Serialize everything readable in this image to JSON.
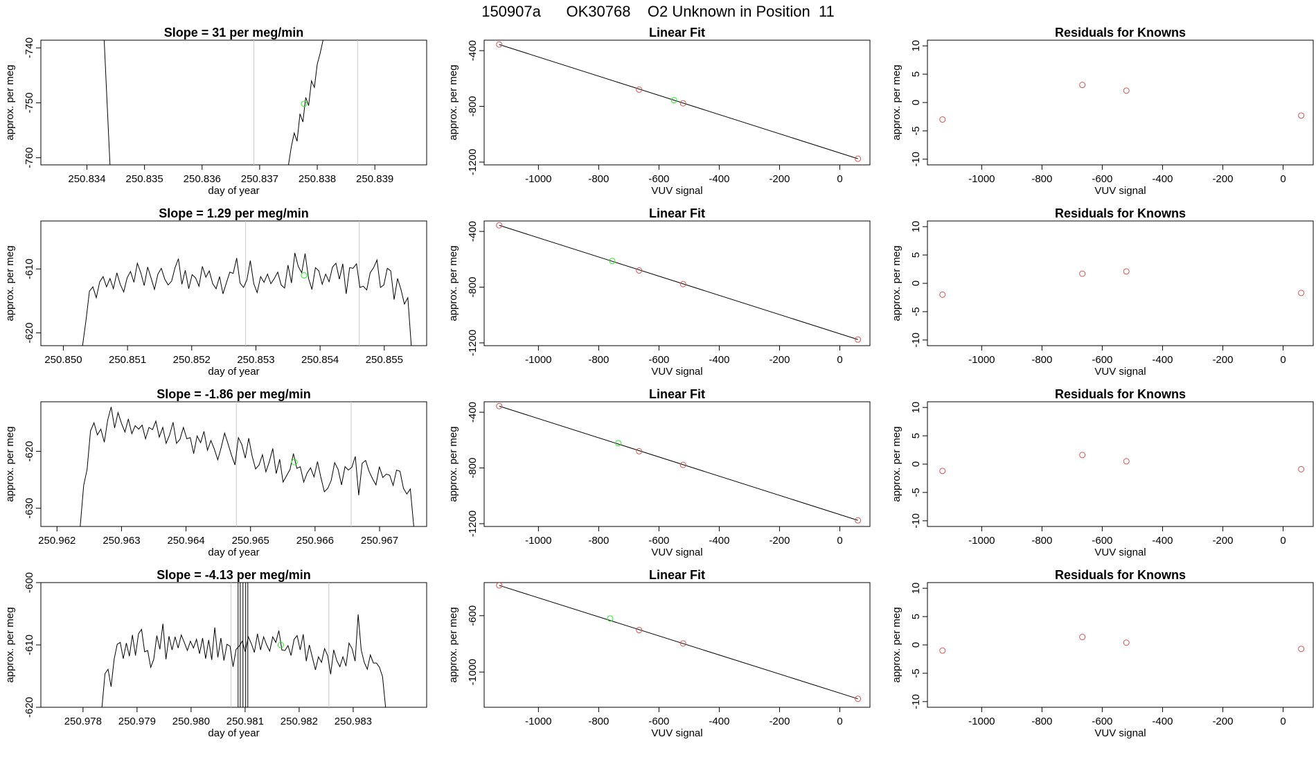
{
  "page": {
    "title": "150907a      OK30768    O2 Unknown in Position  11"
  },
  "chart_data": [
    {
      "type": "line",
      "panel": "timeseries",
      "title": "Slope =  31  per meg/min",
      "xlabel": "day of year",
      "ylabel": "approx. per meg",
      "xlim": [
        250.8332,
        250.8399
      ],
      "ylim": [
        -761.3,
        -738.6
      ],
      "xticks": [
        "250.834",
        "250.835",
        "250.836",
        "250.837",
        "250.838",
        "250.839"
      ],
      "yticks": [
        "-740",
        "-750",
        "-760"
      ],
      "vlines": [
        250.8369,
        250.8387
      ],
      "series": [
        {
          "name": "left-trace",
          "x": [
            250.8343,
            250.8344
          ],
          "y": [
            -738.6,
            -761.3
          ]
        },
        {
          "name": "right-trace",
          "x": [
            250.8375,
            250.83755,
            250.8376,
            250.83765,
            250.8377,
            250.83775,
            250.8378,
            250.83785,
            250.8379,
            250.83795,
            250.838,
            250.83805,
            250.8381
          ],
          "y": [
            -761.3,
            -758,
            -755.5,
            -757,
            -752,
            -753.5,
            -749,
            -750.5,
            -746,
            -747.2,
            -743,
            -741,
            -738.6
          ]
        }
      ],
      "marker": {
        "x": 250.83777,
        "y": -750.2
      }
    },
    {
      "type": "scatter",
      "panel": "fit",
      "title": "Linear Fit",
      "xlabel": "VUV signal",
      "ylabel": "approx. per meg",
      "xlim": [
        -1180,
        100
      ],
      "ylim": [
        -1220,
        -325
      ],
      "xticks": [
        "-1000",
        "-800",
        "-600",
        "-400",
        "-200",
        "0"
      ],
      "yticks": [
        "-400",
        "-800",
        "-1200"
      ],
      "fit_line": {
        "x": [
          -1130,
          60
        ],
        "y": [
          -356,
          -1176
        ]
      },
      "knowns": {
        "x": [
          -1130,
          -666,
          -520,
          60
        ],
        "y": [
          -356,
          -680,
          -778,
          -1176
        ]
      },
      "unknown": {
        "x": -550,
        "y": -756
      }
    },
    {
      "type": "scatter",
      "panel": "residuals",
      "title": "Residuals for Knowns",
      "xlabel": "VUV signal",
      "ylabel": "approx. per meg",
      "xlim": [
        -1180,
        100
      ],
      "ylim": [
        -11,
        11
      ],
      "xticks": [
        "-1000",
        "-800",
        "-600",
        "-400",
        "-200",
        "0"
      ],
      "yticks": [
        "10",
        "5",
        "0",
        "-5",
        "-10"
      ],
      "knowns": {
        "x": [
          -1130,
          -666,
          -520,
          60
        ],
        "y": [
          -3,
          3.1,
          2.1,
          -2.3
        ]
      }
    },
    {
      "type": "line",
      "panel": "timeseries",
      "title": "Slope =  1.29  per meg/min",
      "xlabel": "day of year",
      "ylabel": "approx. per meg",
      "xlim": [
        250.84965,
        250.85566
      ],
      "ylim": [
        -622,
        -602.5
      ],
      "xticks": [
        "250.850",
        "250.851",
        "250.852",
        "250.853",
        "250.854",
        "250.855"
      ],
      "yticks": [
        "-610",
        "-620"
      ],
      "vlines": [
        250.85284,
        250.85461
      ],
      "series": [
        {
          "name": "trace",
          "x_start": 250.8503,
          "x_end": 250.85542,
          "y": [
            -622,
            -618,
            -613.5,
            -612.8,
            -614.5,
            -612,
            -611.2,
            -612.8,
            -611.5,
            -613.1,
            -610.6,
            -612.4,
            -613.6,
            -611.4,
            -610.4,
            -612.1,
            -609.1,
            -610.6,
            -612.6,
            -609.7,
            -611.4,
            -613.2,
            -610.8,
            -609.9,
            -611.6,
            -612.5,
            -611.9,
            -609.8,
            -608.4,
            -612.4,
            -610.2,
            -613.1,
            -610.9,
            -611.4,
            -612.7,
            -609.6,
            -611.3,
            -610.3,
            -612.3,
            -613.1,
            -611.2,
            -613.9,
            -612.2,
            -610.5,
            -610.7,
            -608.3,
            -612.2,
            -612.9,
            -611.7,
            -608.7,
            -612.3,
            -613.7,
            -611.2,
            -612.1,
            -610.8,
            -612.3,
            -611.5,
            -610.5,
            -612.5,
            -613,
            -609.4,
            -612.2,
            -607.5,
            -609.6,
            -610.6,
            -607.6,
            -611.5,
            -613.2,
            -609.8,
            -610.3,
            -612.4,
            -610.8,
            -612,
            -609.7,
            -609.1,
            -611.6,
            -609.2,
            -613.9,
            -609.8,
            -609.9,
            -609.2,
            -612.9,
            -612.7,
            -613.3,
            -610.6,
            -609.8,
            -608.6,
            -612.9,
            -612.5,
            -609.9,
            -610.3,
            -614.8,
            -611.5,
            -613.2,
            -615.5,
            -614.5,
            -622
          ]
        }
      ],
      "marker": {
        "x": 250.85375,
        "y": -611
      }
    },
    {
      "type": "scatter",
      "panel": "fit",
      "title": "Linear Fit",
      "xlabel": "VUV signal",
      "ylabel": "approx. per meg",
      "xlim": [
        -1180,
        100
      ],
      "ylim": [
        -1220,
        -325
      ],
      "xticks": [
        "-1000",
        "-800",
        "-600",
        "-400",
        "-200",
        "0"
      ],
      "yticks": [
        "-400",
        "-800",
        "-1200"
      ],
      "fit_line": {
        "x": [
          -1130,
          60
        ],
        "y": [
          -356,
          -1176
        ]
      },
      "knowns": {
        "x": [
          -1130,
          -666,
          -520,
          60
        ],
        "y": [
          -356,
          -680,
          -778,
          -1176
        ]
      },
      "unknown": {
        "x": -755,
        "y": -612
      }
    },
    {
      "type": "scatter",
      "panel": "residuals",
      "title": "Residuals for Knowns",
      "xlabel": "VUV signal",
      "ylabel": "approx. per meg",
      "xlim": [
        -1180,
        100
      ],
      "ylim": [
        -11,
        11
      ],
      "xticks": [
        "-1000",
        "-800",
        "-600",
        "-400",
        "-200",
        "0"
      ],
      "yticks": [
        "10",
        "5",
        "0",
        "-5",
        "-10"
      ],
      "knowns": {
        "x": [
          -1130,
          -666,
          -520,
          60
        ],
        "y": [
          -2,
          1.7,
          2.1,
          -1.7
        ]
      }
    },
    {
      "type": "line",
      "panel": "timeseries",
      "title": "Slope =  -1.86  per meg/min",
      "xlabel": "day of year",
      "ylabel": "approx. per meg",
      "xlim": [
        250.96175,
        250.96773
      ],
      "ylim": [
        -633.2,
        -611.3
      ],
      "xticks": [
        "250.962",
        "250.963",
        "250.964",
        "250.965",
        "250.966",
        "250.967"
      ],
      "yticks": [
        "-620",
        "-630"
      ],
      "vlines": [
        250.96478,
        250.96656
      ],
      "series": [
        {
          "name": "trace",
          "x_start": 250.96236,
          "x_end": 250.96753,
          "y": [
            -633.2,
            -626,
            -623.2,
            -616.4,
            -615,
            -617.1,
            -616.1,
            -618.4,
            -614.5,
            -612.2,
            -615.9,
            -613.2,
            -615.1,
            -616.6,
            -614.3,
            -616.9,
            -615.5,
            -616.1,
            -615.4,
            -617.8,
            -615.8,
            -616.2,
            -614.7,
            -617.5,
            -615.8,
            -618.6,
            -617.1,
            -614.9,
            -618.6,
            -617.9,
            -615.8,
            -617.8,
            -617.6,
            -620.4,
            -617.3,
            -618.5,
            -616.5,
            -619.8,
            -618.1,
            -619.6,
            -621.5,
            -619.3,
            -616.8,
            -618.7,
            -620.7,
            -622.4,
            -617.6,
            -618.8,
            -621.2,
            -617.7,
            -620.8,
            -623.1,
            -622.4,
            -620.6,
            -623.6,
            -621.8,
            -619.5,
            -623.9,
            -621.4,
            -625.4,
            -624.3,
            -623.2,
            -620.4,
            -623,
            -622.7,
            -625.4,
            -623.8,
            -622.9,
            -624.5,
            -621.8,
            -624.6,
            -627.1,
            -626.5,
            -625.1,
            -622,
            -623.2,
            -625.9,
            -622.7,
            -623.3,
            -622.8,
            -620.9,
            -627.7,
            -622.1,
            -621.6,
            -623.5,
            -624.8,
            -625.9,
            -622.7,
            -624.6,
            -624,
            -624.2,
            -626,
            -623.3,
            -623.5,
            -626.5,
            -627.5,
            -626.6,
            -633.2
          ]
        }
      ],
      "marker": {
        "x": 250.96568,
        "y": -621.9
      }
    },
    {
      "type": "scatter",
      "panel": "fit",
      "title": "Linear Fit",
      "xlabel": "VUV signal",
      "ylabel": "approx. per meg",
      "xlim": [
        -1180,
        100
      ],
      "ylim": [
        -1220,
        -325
      ],
      "xticks": [
        "-1000",
        "-800",
        "-600",
        "-400",
        "-200",
        "0"
      ],
      "yticks": [
        "-400",
        "-800",
        "-1200"
      ],
      "fit_line": {
        "x": [
          -1130,
          60
        ],
        "y": [
          -356,
          -1176
        ]
      },
      "knowns": {
        "x": [
          -1130,
          -666,
          -520,
          60
        ],
        "y": [
          -356,
          -680,
          -778,
          -1176
        ]
      },
      "unknown": {
        "x": -735,
        "y": -622
      }
    },
    {
      "type": "scatter",
      "panel": "residuals",
      "title": "Residuals for Knowns",
      "xlabel": "VUV signal",
      "ylabel": "approx. per meg",
      "xlim": [
        -1180,
        100
      ],
      "ylim": [
        -11,
        11
      ],
      "xticks": [
        "-1000",
        "-800",
        "-600",
        "-400",
        "-200",
        "0"
      ],
      "yticks": [
        "10",
        "5",
        "0",
        "-5",
        "-10"
      ],
      "knowns": {
        "x": [
          -1130,
          -666,
          -520,
          60
        ],
        "y": [
          -1.2,
          1.6,
          0.5,
          -0.9
        ]
      }
    },
    {
      "type": "line",
      "panel": "timeseries",
      "title": "Slope =  -4.13  per meg/min",
      "xlabel": "day of year",
      "ylabel": "approx. per meg",
      "xlim": [
        250.97722,
        250.98436
      ],
      "ylim": [
        -620,
        -600
      ],
      "xticks": [
        "250.978",
        "250.979",
        "250.980",
        "250.981",
        "250.982",
        "250.983"
      ],
      "yticks": [
        "-600",
        "-610",
        "-620"
      ],
      "vlines": [
        250.98074,
        250.98255
      ],
      "spike_lines": [
        250.98087,
        250.98091,
        250.98096,
        250.98101,
        250.98105
      ],
      "series": [
        {
          "name": "trace",
          "x_start": 250.97835,
          "x_end": 250.9836,
          "y": [
            -620,
            -614.6,
            -613.9,
            -616.7,
            -612.3,
            -609.9,
            -609.6,
            -612.2,
            -609.7,
            -611.8,
            -608.4,
            -611.7,
            -608.2,
            -607.5,
            -611.1,
            -610.9,
            -613.6,
            -612.3,
            -608.5,
            -610.7,
            -606.6,
            -612.3,
            -608.6,
            -610.8,
            -608.7,
            -610.5,
            -608.4,
            -609.6,
            -610.9,
            -609.4,
            -610.5,
            -609.1,
            -611.4,
            -608.9,
            -612.2,
            -609.2,
            -612.4,
            -607.2,
            -612,
            -608.9,
            -612.5,
            -609.9,
            -610.2,
            -613.5,
            -610.7,
            -610.2,
            -609.4,
            -611.1,
            -608.7,
            -609.8,
            -611.2,
            -608.2,
            -610.8,
            -608.7,
            -610,
            -611,
            -608.7,
            -609.6,
            -607.7,
            -610.8,
            -610.9,
            -610.1,
            -611.7,
            -609.1,
            -608.5,
            -610.8,
            -608.3,
            -612.6,
            -610,
            -612,
            -614,
            -611.9,
            -612.8,
            -610.6,
            -611.7,
            -614.7,
            -610.8,
            -612.5,
            -613.5,
            -611.9,
            -613.4,
            -609.7,
            -610.6,
            -612.6,
            -605.1,
            -610.8,
            -612.8,
            -613.9,
            -611.6,
            -612.9,
            -612.9,
            -613.6,
            -615.1,
            -620
          ]
        }
      ],
      "marker": {
        "x": 250.98166,
        "y": -610
      }
    },
    {
      "type": "scatter",
      "panel": "fit",
      "title": "Linear Fit",
      "xlabel": "VUV signal",
      "ylabel": "approx. per meg",
      "xlim": [
        -1180,
        100
      ],
      "ylim": [
        -1250,
        -365
      ],
      "xticks": [
        "-1000",
        "-800",
        "-600",
        "-400",
        "-200",
        "0"
      ],
      "yticks": [
        "-600",
        "-1000"
      ],
      "fit_line": {
        "x": [
          -1130,
          60
        ],
        "y": [
          -385,
          -1190
        ]
      },
      "knowns": {
        "x": [
          -1130,
          -666,
          -520,
          60
        ],
        "y": [
          -385,
          -702,
          -797,
          -1190
        ]
      },
      "unknown": {
        "x": -762,
        "y": -620
      }
    },
    {
      "type": "scatter",
      "panel": "residuals",
      "title": "Residuals for Knowns",
      "xlabel": "VUV signal",
      "ylabel": "approx. per meg",
      "xlim": [
        -1180,
        100
      ],
      "ylim": [
        -11,
        11
      ],
      "xticks": [
        "-1000",
        "-800",
        "-600",
        "-400",
        "-200",
        "0"
      ],
      "yticks": [
        "10",
        "5",
        "0",
        "-5",
        "-10"
      ],
      "knowns": {
        "x": [
          -1130,
          -666,
          -520,
          60
        ],
        "y": [
          -1,
          1.4,
          0.4,
          -0.7
        ]
      }
    }
  ],
  "colors": {
    "axis": "#000000",
    "trace": "#000000",
    "vline": "#c8c8c8",
    "known_marker": "#d9534f",
    "unknown_marker": "#22ee22"
  }
}
